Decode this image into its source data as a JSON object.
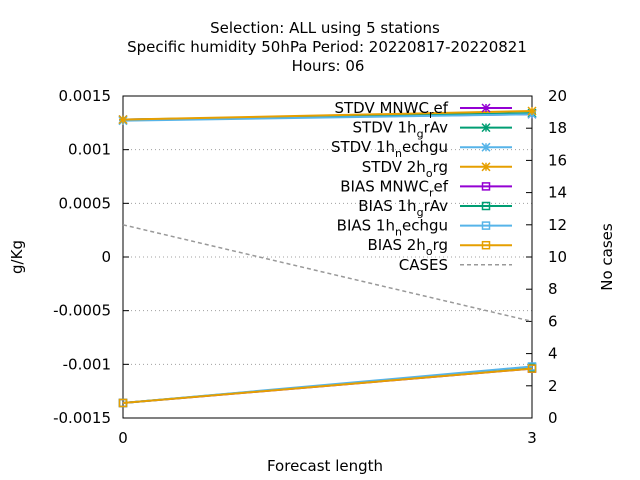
{
  "chart_data": {
    "type": "line",
    "title_lines": [
      "Selection: ALL using     5 stations",
      "Specific humidity 50hPa   Period: 20220817-20220821",
      "Hours:  06"
    ],
    "xlabel": "Forecast length",
    "ylabel": "g/Kg",
    "y2label": "No cases",
    "x": [
      0,
      3
    ],
    "xlim": [
      0,
      3
    ],
    "ylim": [
      -0.0015,
      0.0015
    ],
    "y2lim": [
      0,
      20
    ],
    "x_ticks": [
      "0",
      "3"
    ],
    "y_ticks": [
      "0.0015",
      "0.001",
      "0.0005",
      "0",
      "-0.0005",
      "-0.001",
      "-0.0015"
    ],
    "y2_ticks": [
      "20",
      "18",
      "16",
      "14",
      "12",
      "10",
      "8",
      "6",
      "4",
      "2",
      "0"
    ],
    "grid": "horizontal dotted",
    "legend_position": "top-right",
    "series": [
      {
        "name": "STDV MNWC_ref",
        "legend_parts": [
          "STDV MNWC",
          "r",
          "ef"
        ],
        "axis": "y",
        "marker": "star",
        "color": "#9400d3",
        "values": [
          0.00128,
          0.00133
        ]
      },
      {
        "name": "STDV 1h_grAv",
        "legend_parts": [
          "STDV 1h",
          "g",
          "rAv"
        ],
        "axis": "y",
        "marker": "star",
        "color": "#009e73",
        "values": [
          0.00128,
          0.00134
        ]
      },
      {
        "name": "STDV 1h_nechgu",
        "legend_parts": [
          "STDV 1h",
          "n",
          "echgu"
        ],
        "axis": "y",
        "marker": "star",
        "color": "#56b4e9",
        "values": [
          0.00127,
          0.00133
        ]
      },
      {
        "name": "STDV 2h_org",
        "legend_parts": [
          "STDV 2h",
          "o",
          "rg"
        ],
        "axis": "y",
        "marker": "star",
        "color": "#e69f00",
        "values": [
          0.00128,
          0.00136
        ]
      },
      {
        "name": "BIAS MNWC_ref",
        "legend_parts": [
          "BIAS MNWC",
          "r",
          "ef"
        ],
        "axis": "y",
        "marker": "square",
        "color": "#9400d3",
        "values": [
          -0.00136,
          -0.00104
        ]
      },
      {
        "name": "BIAS 1h_grAv",
        "legend_parts": [
          "BIAS 1h",
          "g",
          "rAv"
        ],
        "axis": "y",
        "marker": "square",
        "color": "#009e73",
        "values": [
          -0.00136,
          -0.00103
        ]
      },
      {
        "name": "BIAS 1h_nechgu",
        "legend_parts": [
          "BIAS 1h",
          "n",
          "echgu"
        ],
        "axis": "y",
        "marker": "square",
        "color": "#56b4e9",
        "values": [
          -0.00136,
          -0.00102
        ]
      },
      {
        "name": "BIAS 2h_org",
        "legend_parts": [
          "BIAS 2h",
          "o",
          "rg"
        ],
        "axis": "y",
        "marker": "square",
        "color": "#e69f00",
        "values": [
          -0.00136,
          -0.00104
        ]
      },
      {
        "name": "CASES",
        "legend_parts": [
          "CASES",
          "",
          ""
        ],
        "axis": "y2",
        "marker": "none",
        "dashed": true,
        "color": "#999999",
        "values": [
          12,
          6
        ]
      }
    ]
  }
}
